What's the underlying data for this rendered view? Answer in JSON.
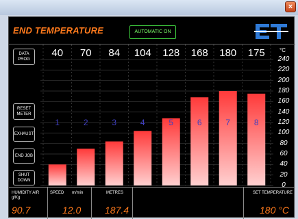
{
  "window": {
    "close_glyph": "×"
  },
  "header": {
    "title": "END TEMPERATURE",
    "mode": "AUTOMATIC ON",
    "logo_text": "Et"
  },
  "sidebar": {
    "data_prog": "DATA PROG",
    "reset_meter": "RESET METER",
    "exhaust": "EXHAUST",
    "end_job": "END JOB",
    "shut_down": "SHUT DOWN"
  },
  "chart_data": {
    "type": "bar",
    "categories": [
      "1",
      "2",
      "3",
      "4",
      "5",
      "6",
      "7",
      "8"
    ],
    "values": [
      40,
      70,
      84,
      104,
      128,
      168,
      180,
      175
    ],
    "unit": "°C",
    "ylim": [
      0,
      240
    ],
    "yticks": [
      0,
      20,
      40,
      60,
      80,
      100,
      120,
      140,
      160,
      180,
      200,
      220,
      240
    ],
    "bar_color_top": "#ff3a3a",
    "bar_color_bottom": "#ffd0d0",
    "label_color": "#4040c0"
  },
  "footer": {
    "humidity_label": "HUMIDITY AIR g/Kg",
    "humidity_value": "90.7",
    "speed_label": "SPEED",
    "speed_unit": "m/min",
    "speed_value": "12.0",
    "metres_label": "METRES",
    "metres_value": "187.4",
    "set_temp_label": "SET TEMPERATURE",
    "set_temp_value": "180 °C"
  }
}
